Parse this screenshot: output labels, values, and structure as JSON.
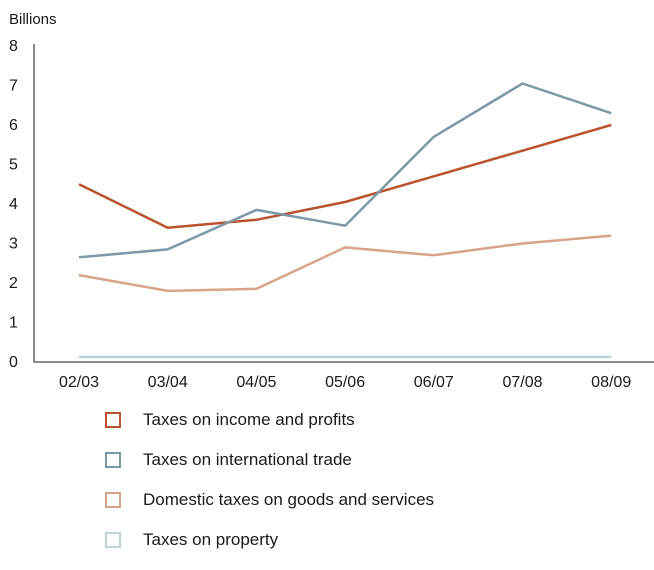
{
  "chart_data": {
    "type": "line",
    "ylabel": "Billions",
    "categories": [
      "02/03",
      "03/04",
      "04/05",
      "05/06",
      "06/07",
      "07/08",
      "08/09"
    ],
    "ylim": [
      0,
      8
    ],
    "yticks": [
      "0",
      "1",
      "2",
      "3",
      "4",
      "5",
      "6",
      "7",
      "8"
    ],
    "grid": false,
    "legend_position": "bottom",
    "series": [
      {
        "name": "Taxes on income and profits",
        "color": "#b9532e",
        "values": [
          4.5,
          3.4,
          3.6,
          4.05,
          4.7,
          5.35,
          6.0
        ]
      },
      {
        "name": "Taxes on international trade",
        "color": "#7d98a6",
        "values": [
          2.65,
          2.85,
          3.85,
          3.45,
          5.7,
          7.05,
          6.3
        ]
      },
      {
        "name": "Domestic taxes on goods and services",
        "color": "#d9a58a",
        "values": [
          2.2,
          1.8,
          1.85,
          2.9,
          2.7,
          3.0,
          3.2
        ]
      },
      {
        "name": "Taxes on property",
        "color": "#bcd3da",
        "values": [
          0.13,
          0.13,
          0.13,
          0.13,
          0.13,
          0.13,
          0.13
        ]
      }
    ]
  }
}
